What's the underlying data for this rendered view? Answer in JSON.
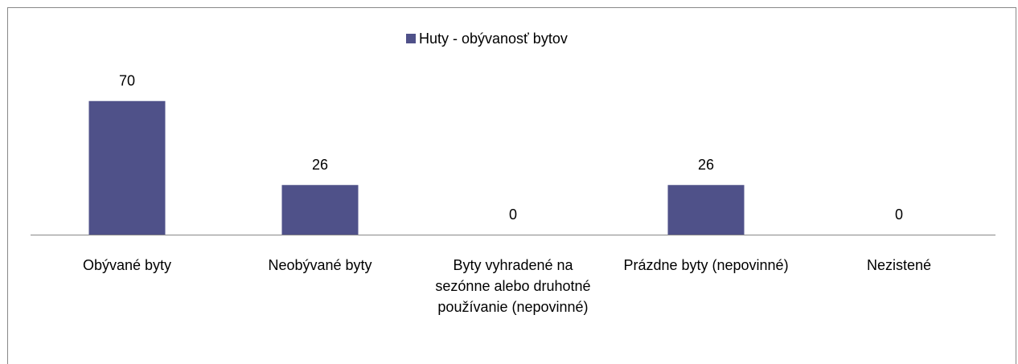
{
  "chart_data": {
    "type": "bar",
    "categories": [
      "Obývané byty",
      "Neobývané byty",
      "Byty vyhradené na sezónne alebo druhotné používanie (nepovinné)",
      "Prázdne byty (nepovinné)",
      "Nezistené"
    ],
    "series": [
      {
        "name": "Huty - obývanosť bytov",
        "color": "#4f5189",
        "values": [
          70,
          26,
          0,
          26,
          0
        ]
      }
    ],
    "ylim": [
      0,
      80
    ],
    "legend": "top"
  }
}
